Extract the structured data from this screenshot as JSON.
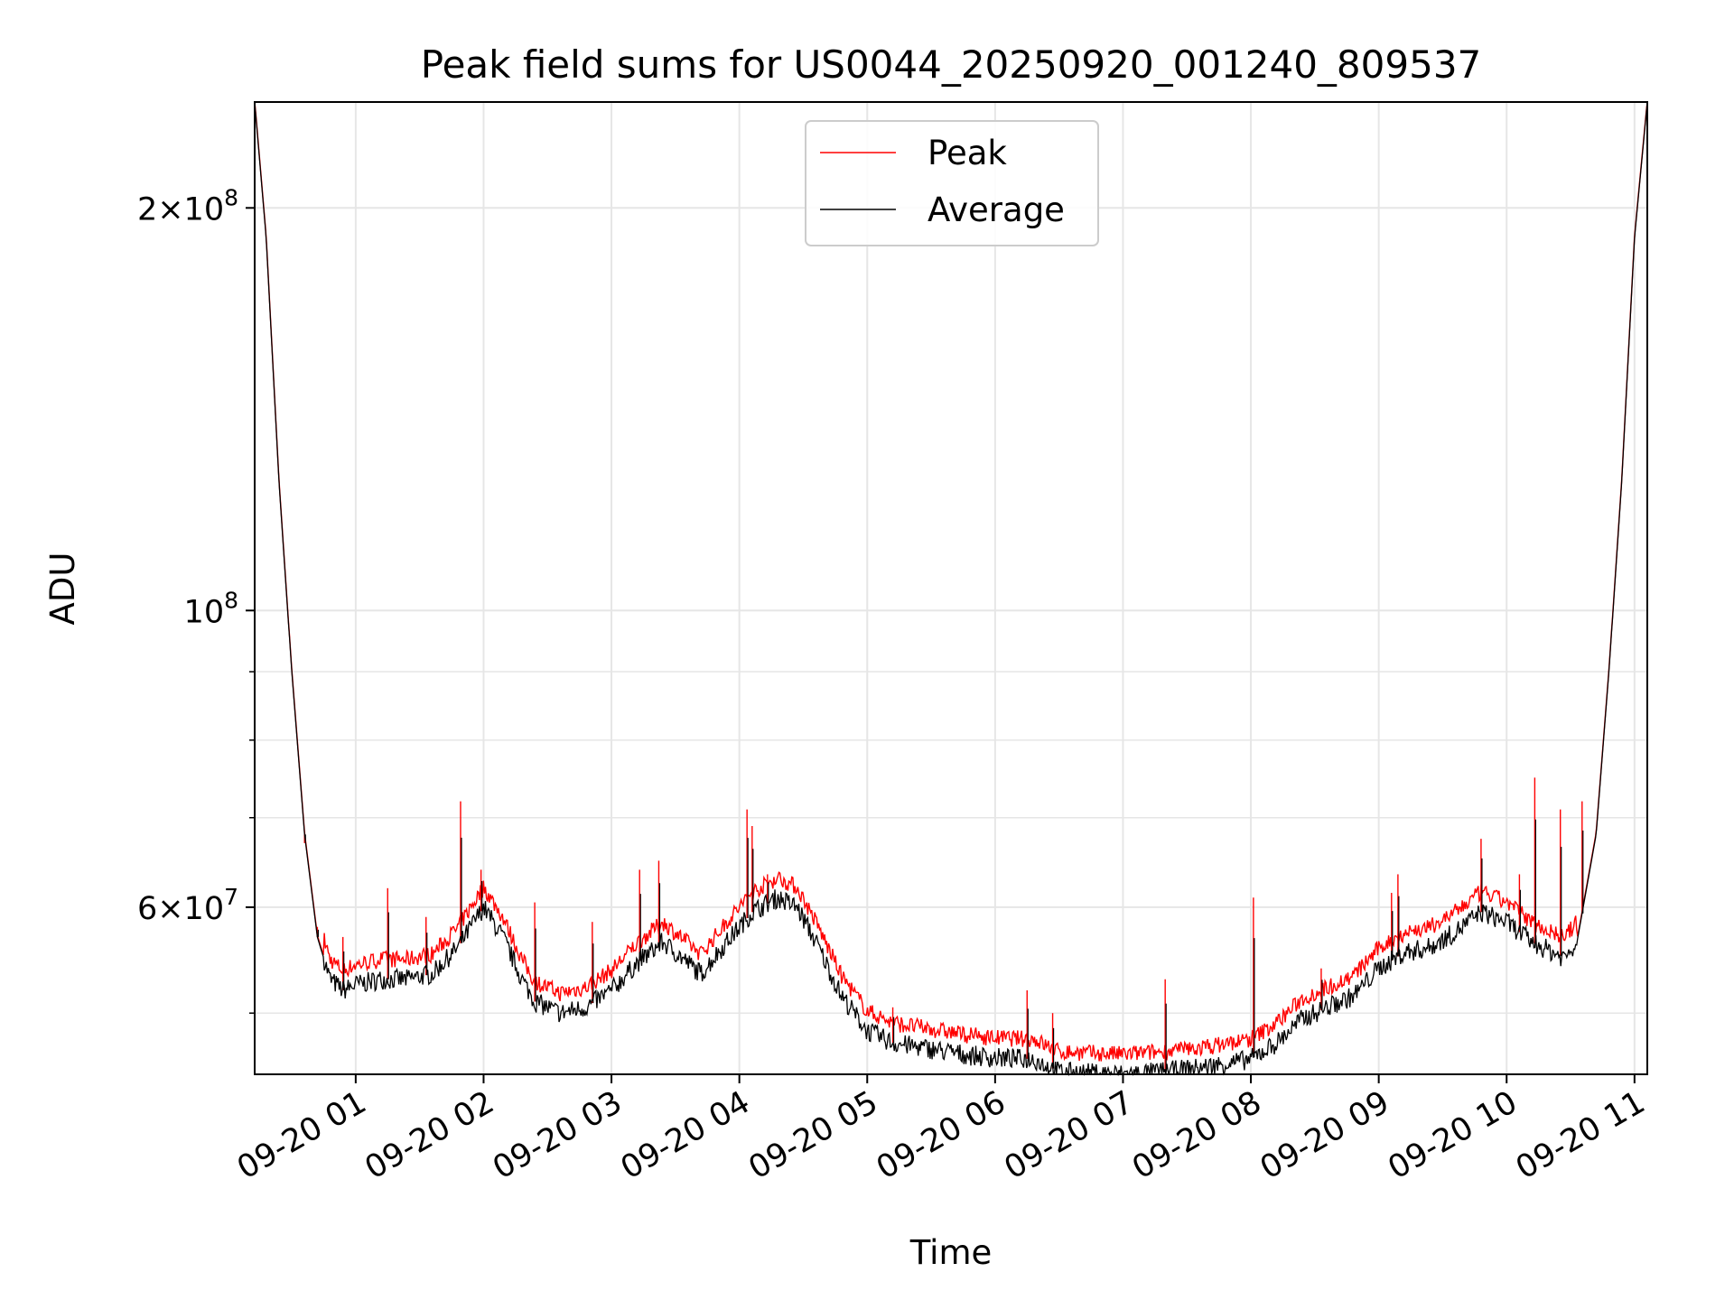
{
  "chart_data": {
    "type": "line",
    "title": "Peak field sums for US0044_20250920_001240_809537",
    "xlabel": "Time",
    "ylabel": "ADU",
    "y_scale": "log",
    "xlim": [
      0.21,
      11.1
    ],
    "ylim": [
      45000000,
      240000000
    ],
    "grid": true,
    "legend_location": "upper center",
    "x_ticks": [
      {
        "value": 1,
        "label": "09-20 01"
      },
      {
        "value": 2,
        "label": "09-20 02"
      },
      {
        "value": 3,
        "label": "09-20 03"
      },
      {
        "value": 4,
        "label": "09-20 04"
      },
      {
        "value": 5,
        "label": "09-20 05"
      },
      {
        "value": 6,
        "label": "09-20 06"
      },
      {
        "value": 7,
        "label": "09-20 07"
      },
      {
        "value": 8,
        "label": "09-20 08"
      },
      {
        "value": 9,
        "label": "09-20 09"
      },
      {
        "value": 10,
        "label": "09-20 10"
      },
      {
        "value": 11,
        "label": "09-20 11"
      }
    ],
    "y_major_ticks": [
      {
        "value": 60000000,
        "base": "6",
        "exp": "7"
      },
      {
        "value": 100000000,
        "base": "",
        "exp": "8"
      },
      {
        "value": 200000000,
        "base": "2",
        "exp": "8"
      }
    ],
    "y_minor_ticks": [
      50000000,
      70000000,
      80000000,
      90000000
    ],
    "x_unit_note": "hours since 2025-09-20 00:00",
    "series": [
      {
        "name": "Average",
        "color": "#000000",
        "baseline": [
          [
            0.21,
            240000000
          ],
          [
            0.3,
            190000000
          ],
          [
            0.4,
            125000000
          ],
          [
            0.5,
            90000000
          ],
          [
            0.6,
            68000000
          ],
          [
            0.7,
            57000000
          ],
          [
            0.8,
            53000000
          ],
          [
            0.9,
            52000000
          ],
          [
            1.0,
            52500000
          ],
          [
            1.2,
            53000000
          ],
          [
            1.4,
            53000000
          ],
          [
            1.6,
            53500000
          ],
          [
            1.8,
            56000000
          ],
          [
            2.0,
            60000000
          ],
          [
            2.15,
            57000000
          ],
          [
            2.3,
            53000000
          ],
          [
            2.4,
            51000000
          ],
          [
            2.6,
            50000000
          ],
          [
            2.8,
            50500000
          ],
          [
            3.0,
            52000000
          ],
          [
            3.2,
            54500000
          ],
          [
            3.4,
            56500000
          ],
          [
            3.5,
            55500000
          ],
          [
            3.7,
            53500000
          ],
          [
            3.9,
            56500000
          ],
          [
            4.1,
            59500000
          ],
          [
            4.3,
            61000000
          ],
          [
            4.45,
            60000000
          ],
          [
            4.6,
            56500000
          ],
          [
            4.8,
            51500000
          ],
          [
            5.0,
            48500000
          ],
          [
            5.2,
            47500000
          ],
          [
            5.5,
            47000000
          ],
          [
            5.8,
            46500000
          ],
          [
            6.0,
            46300000
          ],
          [
            6.3,
            46200000
          ],
          [
            6.5,
            45200000
          ],
          [
            7.0,
            45000000
          ],
          [
            7.3,
            45200000
          ],
          [
            7.6,
            45500000
          ],
          [
            7.9,
            46000000
          ],
          [
            8.0,
            46200000
          ],
          [
            8.2,
            47500000
          ],
          [
            8.4,
            49500000
          ],
          [
            8.6,
            50500000
          ],
          [
            8.8,
            51500000
          ],
          [
            9.0,
            54000000
          ],
          [
            9.2,
            55500000
          ],
          [
            9.4,
            56000000
          ],
          [
            9.6,
            57500000
          ],
          [
            9.8,
            59500000
          ],
          [
            10.0,
            58500000
          ],
          [
            10.2,
            56500000
          ],
          [
            10.45,
            55000000
          ],
          [
            10.55,
            56500000
          ],
          [
            10.7,
            68000000
          ],
          [
            10.8,
            90000000
          ],
          [
            10.9,
            125000000
          ],
          [
            11.0,
            190000000
          ],
          [
            11.1,
            240000000
          ]
        ]
      },
      {
        "name": "Peak",
        "color": "#ff0000",
        "spikes": [
          [
            0.6,
            67000000
          ],
          [
            0.7,
            58000000
          ],
          [
            0.9,
            57000000
          ],
          [
            1.25,
            62000000
          ],
          [
            1.55,
            59000000
          ],
          [
            1.82,
            72000000
          ],
          [
            1.98,
            64000000
          ],
          [
            2.4,
            60500000
          ],
          [
            2.85,
            58500000
          ],
          [
            3.22,
            64000000
          ],
          [
            3.37,
            65000000
          ],
          [
            4.06,
            71000000
          ],
          [
            4.1,
            69000000
          ],
          [
            4.22,
            63500000
          ],
          [
            5.2,
            50500000
          ],
          [
            6.25,
            52000000
          ],
          [
            6.45,
            50000000
          ],
          [
            7.33,
            53000000
          ],
          [
            8.02,
            61000000
          ],
          [
            8.55,
            54000000
          ],
          [
            9.1,
            61500000
          ],
          [
            9.15,
            63500000
          ],
          [
            9.8,
            67500000
          ],
          [
            10.1,
            63500000
          ],
          [
            10.22,
            75000000
          ],
          [
            10.42,
            71000000
          ],
          [
            10.59,
            72000000
          ]
        ],
        "offset_ratio": 1.02
      }
    ]
  }
}
